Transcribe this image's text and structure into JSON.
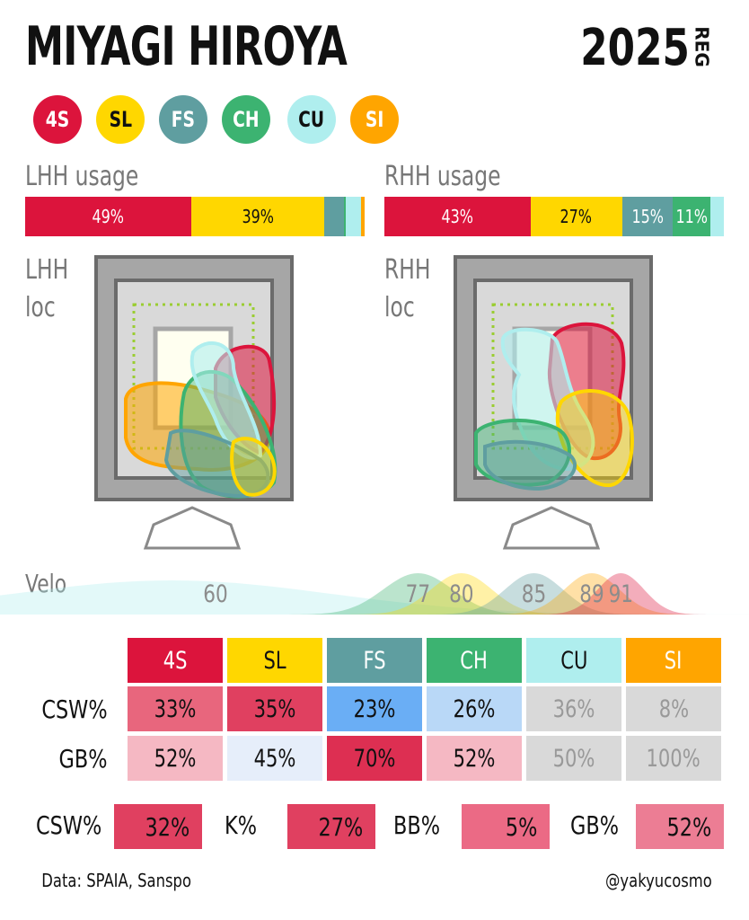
{
  "header": {
    "title": "MIYAGI HIROYA",
    "year": "2025",
    "tag": "REG"
  },
  "pitches": [
    {
      "code": "4S",
      "color": "#dc143c",
      "text": "#ffffff"
    },
    {
      "code": "SL",
      "color": "#ffd700",
      "text": "#111111"
    },
    {
      "code": "FS",
      "color": "#5f9ea0",
      "text": "#ffffff"
    },
    {
      "code": "CH",
      "color": "#3cb371",
      "text": "#ffffff"
    },
    {
      "code": "CU",
      "color": "#afeeee",
      "text": "#111111"
    },
    {
      "code": "SI",
      "color": "#ffa500",
      "text": "#ffffff"
    }
  ],
  "chart_data": [
    {
      "type": "bar",
      "title": "LHH usage",
      "categories": [
        "4S",
        "SL",
        "FS",
        "CH",
        "CU",
        "SI"
      ],
      "values": [
        49,
        39,
        6,
        0.5,
        4.5,
        1
      ],
      "labels": [
        "49%",
        "39%",
        "",
        "",
        "",
        ""
      ],
      "unit": "%"
    },
    {
      "type": "bar",
      "title": "RHH usage",
      "categories": [
        "4S",
        "SL",
        "FS",
        "CH",
        "CU",
        "SI"
      ],
      "values": [
        43,
        27,
        15,
        11,
        4,
        0
      ],
      "labels": [
        "43%",
        "27%",
        "15%",
        "11%",
        "",
        ""
      ],
      "unit": "%"
    },
    {
      "type": "area",
      "title": "Velo",
      "series": [
        {
          "name": "CU",
          "peak": 60
        },
        {
          "name": "CH",
          "peak": 77
        },
        {
          "name": "SL",
          "peak": 80
        },
        {
          "name": "FS",
          "peak": 85
        },
        {
          "name": "SI",
          "peak": 89
        },
        {
          "name": "4S",
          "peak": 91
        }
      ]
    },
    {
      "type": "table",
      "columns": [
        "4S",
        "SL",
        "FS",
        "CH",
        "CU",
        "SI"
      ],
      "rows": [
        {
          "label": "CSW%",
          "values": [
            "33%",
            "35%",
            "23%",
            "26%",
            "36%",
            "8%"
          ],
          "colors": [
            "#e8667d",
            "#e04060",
            "#6aaef5",
            "#b9d8f7",
            "#d9d9d9",
            "#d9d9d9"
          ],
          "text": [
            "#111",
            "#111",
            "#111",
            "#111",
            "#999",
            "#999"
          ]
        },
        {
          "label": "GB%",
          "values": [
            "52%",
            "45%",
            "70%",
            "52%",
            "50%",
            "100%"
          ],
          "colors": [
            "#f5b8c3",
            "#e6eefa",
            "#dd2f52",
            "#f5b8c3",
            "#d9d9d9",
            "#d9d9d9"
          ],
          "text": [
            "#111",
            "#111",
            "#111",
            "#111",
            "#999",
            "#999"
          ]
        }
      ]
    }
  ],
  "location": {
    "lhh_label_1": "LHH",
    "lhh_label_2": "loc",
    "rhh_label_1": "RHH",
    "rhh_label_2": "loc"
  },
  "summary": [
    {
      "label": "CSW%",
      "value": "32%",
      "color": "#e04060"
    },
    {
      "label": "K%",
      "value": "27%",
      "color": "#e04060"
    },
    {
      "label": "BB%",
      "value": "5%",
      "color": "#eb6a85"
    },
    {
      "label": "GB%",
      "value": "52%",
      "color": "#ec7d94"
    }
  ],
  "footer": {
    "source": "Data: SPAIA, Sanspo",
    "credit": "@yakyucosmo"
  }
}
